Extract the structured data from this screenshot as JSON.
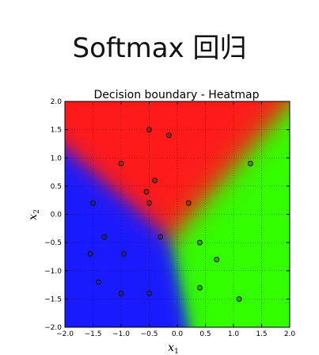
{
  "slide": {
    "title": "Softmax 回归"
  },
  "chart_data": {
    "type": "heatmap",
    "title": "Decision boundary - Heatmap",
    "xlabel": "x",
    "xlabel_sub": "1",
    "ylabel": "x",
    "ylabel_sub": "2",
    "xlim": [
      -2.0,
      2.0
    ],
    "ylim": [
      -2.0,
      2.0
    ],
    "xticks": [
      -2.0,
      -1.5,
      -1.0,
      -0.5,
      0.0,
      0.5,
      1.0,
      1.5,
      2.0
    ],
    "yticks": [
      -2.0,
      -1.5,
      -1.0,
      -0.5,
      0.0,
      0.5,
      1.0,
      1.5,
      2.0
    ],
    "xtick_labels": [
      "−2.0",
      "−1.5",
      "−1.0",
      "−0.5",
      "0.0",
      "0.5",
      "1.0",
      "1.5",
      "2.0"
    ],
    "ytick_labels": [
      "−2.0",
      "−1.5",
      "−1.0",
      "−0.5",
      "0.0",
      "0.5",
      "1.0",
      "1.5",
      "2.0"
    ],
    "grid": true,
    "class_colors": {
      "red": "#ff1a1a",
      "green": "#33ff00",
      "blue": "#1a1aff"
    },
    "points": [
      {
        "x": -0.5,
        "y": 1.5
      },
      {
        "x": -0.15,
        "y": 1.4
      },
      {
        "x": -1.0,
        "y": 0.9
      },
      {
        "x": -0.4,
        "y": 0.6
      },
      {
        "x": -0.55,
        "y": 0.4
      },
      {
        "x": -1.5,
        "y": 0.2
      },
      {
        "x": -0.5,
        "y": 0.2
      },
      {
        "x": 0.2,
        "y": 0.2
      },
      {
        "x": 1.3,
        "y": 0.9
      },
      {
        "x": -1.3,
        "y": -0.4
      },
      {
        "x": -0.3,
        "y": -0.4
      },
      {
        "x": 0.4,
        "y": -0.5
      },
      {
        "x": -1.55,
        "y": -0.7
      },
      {
        "x": -0.95,
        "y": -0.7
      },
      {
        "x": 0.7,
        "y": -0.8
      },
      {
        "x": -1.4,
        "y": -1.2
      },
      {
        "x": 0.4,
        "y": -1.3
      },
      {
        "x": -1.0,
        "y": -1.4
      },
      {
        "x": -0.5,
        "y": -1.4
      },
      {
        "x": 1.1,
        "y": -1.5
      }
    ]
  }
}
